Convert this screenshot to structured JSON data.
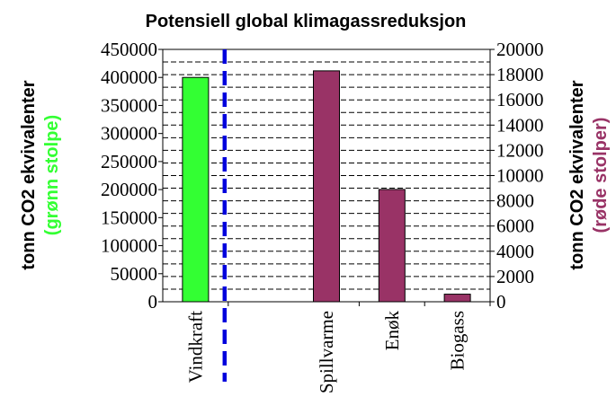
{
  "chart_data": {
    "type": "bar",
    "title": "Potensiell global klimagassreduksjon",
    "categories": [
      "Vindkraft",
      "Spillvarme",
      "Enøk",
      "Biogass"
    ],
    "series": [
      {
        "axis": "left",
        "color": "#33ff33",
        "values": [
          400000,
          null,
          null,
          null
        ]
      },
      {
        "axis": "right",
        "color": "#993366",
        "values": [
          null,
          18300,
          8900,
          600
        ]
      }
    ],
    "left_axis": {
      "label": "tonn CO2 ekvivalenter",
      "sublabel": "(grønn stolpe)",
      "sublabel_color": "#33ff33",
      "ylim": [
        0,
        450000
      ],
      "ticks": [
        "0",
        "50000",
        "100000",
        "150000",
        "200000",
        "250000",
        "300000",
        "350000",
        "400000",
        "450000"
      ]
    },
    "right_axis": {
      "label": "tonn CO2 ekvivalenter",
      "sublabel": "(røde stolper)",
      "sublabel_color": "#993366",
      "ylim": [
        0,
        20000
      ],
      "ticks": [
        "0",
        "2000",
        "4000",
        "6000",
        "8000",
        "10000",
        "12000",
        "14000",
        "16000",
        "18000",
        "20000"
      ]
    },
    "divider": {
      "style": "dashed",
      "color": "#0000dd",
      "between": [
        "Vindkraft",
        "Spillvarme"
      ]
    },
    "grid": "dashed horizontal",
    "legend": "none"
  }
}
